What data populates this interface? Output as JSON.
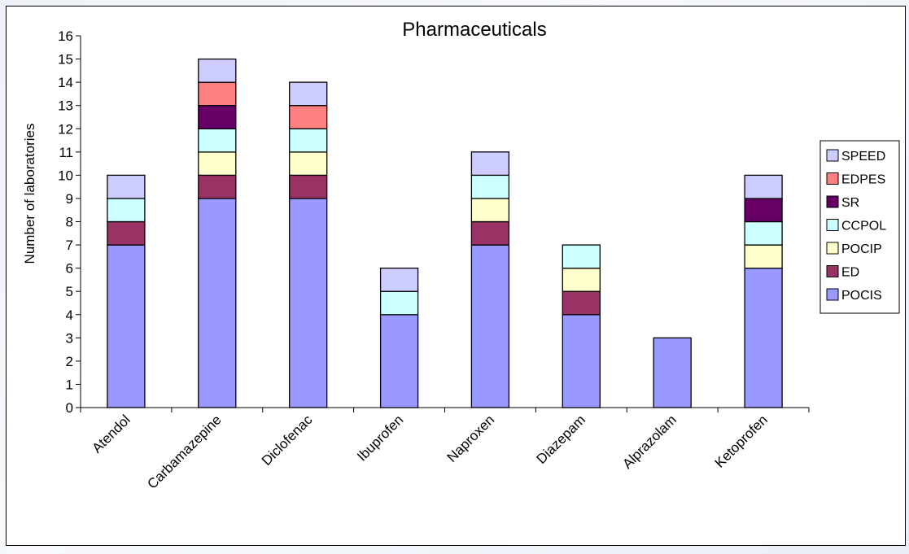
{
  "chart_data": {
    "type": "bar",
    "stacked": true,
    "title": "Pharmaceuticals",
    "xlabel": "",
    "ylabel": "Number of laboratories",
    "ylim": [
      0,
      16
    ],
    "yticks": [
      0,
      1,
      2,
      3,
      4,
      5,
      6,
      7,
      8,
      9,
      10,
      11,
      12,
      13,
      14,
      15,
      16
    ],
    "grid": false,
    "legend_position": "right",
    "categories": [
      "Atendol",
      "Carbamazepine",
      "Diclofenac",
      "Ibuprofen",
      "Naproxen",
      "Diazepam",
      "Alprazolam",
      "Ketoprofen"
    ],
    "series": [
      {
        "name": "POCIS",
        "color": "#9999ff",
        "values": [
          7,
          9,
          9,
          4,
          7,
          4,
          3,
          6
        ]
      },
      {
        "name": "ED",
        "color": "#993366",
        "values": [
          1,
          1,
          1,
          0,
          1,
          1,
          0,
          0
        ]
      },
      {
        "name": "POCIP",
        "color": "#ffffcc",
        "values": [
          0,
          1,
          1,
          0,
          1,
          1,
          0,
          1
        ]
      },
      {
        "name": "CCPOL",
        "color": "#ccffff",
        "values": [
          1,
          1,
          1,
          1,
          1,
          1,
          0,
          1
        ]
      },
      {
        "name": "SR",
        "color": "#660066",
        "values": [
          0,
          1,
          0,
          0,
          0,
          0,
          0,
          1
        ]
      },
      {
        "name": "EDPES",
        "color": "#ff8080",
        "values": [
          0,
          1,
          1,
          0,
          0,
          0,
          0,
          0
        ]
      },
      {
        "name": "SPEED",
        "color": "#ccccff",
        "values": [
          1,
          1,
          1,
          1,
          1,
          0,
          0,
          1
        ]
      }
    ]
  }
}
